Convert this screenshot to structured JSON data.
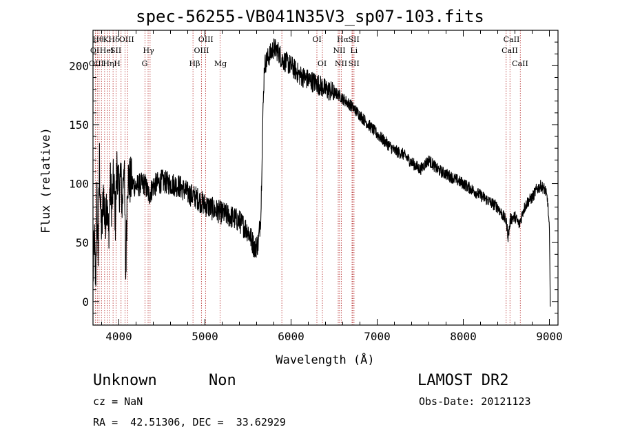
{
  "title": "spec-56255-VB041N35V3_sp07-103.fits",
  "info": {
    "class_label": "Unknown",
    "subclass_label": "Non",
    "survey": "LAMOST DR2",
    "cz": "cz = NaN",
    "obs_date": "Obs-Date: 20121123",
    "ra_dec": "RA =  42.51306, DEC =  33.62929"
  },
  "chart_data": {
    "type": "line",
    "xlabel": "Wavelength (Å)",
    "ylabel": "Flux (relative)",
    "xlim": [
      3700,
      9100
    ],
    "ylim": [
      -20,
      230
    ],
    "xticks": [
      4000,
      5000,
      6000,
      7000,
      8000,
      9000
    ],
    "yticks": [
      0,
      50,
      100,
      150,
      200
    ],
    "series": [
      {
        "points": [
          [
            3700,
            20
          ],
          [
            3715,
            55
          ],
          [
            3730,
            15
          ],
          [
            3745,
            85
          ],
          [
            3760,
            40
          ],
          [
            3775,
            120
          ],
          [
            3790,
            70
          ],
          [
            3805,
            60
          ],
          [
            3820,
            95
          ],
          [
            3840,
            65
          ],
          [
            3860,
            90
          ],
          [
            3880,
            55
          ],
          [
            3900,
            100
          ],
          [
            3920,
            80
          ],
          [
            3940,
            105
          ],
          [
            3960,
            70
          ],
          [
            3980,
            120
          ],
          [
            4000,
            90
          ],
          [
            4020,
            110
          ],
          [
            4040,
            80
          ],
          [
            4060,
            125
          ],
          [
            4080,
            20
          ],
          [
            4100,
            105
          ],
          [
            4150,
            100
          ],
          [
            4200,
            98
          ],
          [
            4300,
            100
          ],
          [
            4350,
            90
          ],
          [
            4400,
            98
          ],
          [
            4500,
            102
          ],
          [
            4600,
            100
          ],
          [
            4700,
            98
          ],
          [
            4800,
            92
          ],
          [
            4900,
            88
          ],
          [
            5000,
            82
          ],
          [
            5100,
            78
          ],
          [
            5200,
            75
          ],
          [
            5300,
            72
          ],
          [
            5400,
            68
          ],
          [
            5500,
            60
          ],
          [
            5580,
            45
          ],
          [
            5620,
            50
          ],
          [
            5650,
            75
          ],
          [
            5670,
            150
          ],
          [
            5690,
            200
          ],
          [
            5720,
            205
          ],
          [
            5800,
            215
          ],
          [
            5850,
            212
          ],
          [
            5900,
            205
          ],
          [
            6000,
            200
          ],
          [
            6100,
            192
          ],
          [
            6200,
            188
          ],
          [
            6300,
            185
          ],
          [
            6400,
            180
          ],
          [
            6500,
            177
          ],
          [
            6560,
            175
          ],
          [
            6600,
            172
          ],
          [
            6700,
            166
          ],
          [
            6800,
            158
          ],
          [
            6900,
            150
          ],
          [
            7000,
            142
          ],
          [
            7100,
            135
          ],
          [
            7200,
            128
          ],
          [
            7300,
            125
          ],
          [
            7400,
            118
          ],
          [
            7500,
            112
          ],
          [
            7600,
            120
          ],
          [
            7700,
            112
          ],
          [
            7800,
            108
          ],
          [
            7900,
            104
          ],
          [
            8000,
            100
          ],
          [
            8100,
            95
          ],
          [
            8200,
            90
          ],
          [
            8300,
            85
          ],
          [
            8400,
            80
          ],
          [
            8500,
            68
          ],
          [
            8520,
            55
          ],
          [
            8550,
            70
          ],
          [
            8600,
            72
          ],
          [
            8650,
            65
          ],
          [
            8700,
            78
          ],
          [
            8750,
            85
          ],
          [
            8800,
            88
          ],
          [
            8850,
            95
          ],
          [
            8900,
            98
          ],
          [
            8950,
            95
          ],
          [
            8980,
            85
          ],
          [
            9000,
            60
          ],
          [
            9010,
            0
          ]
        ]
      }
    ],
    "lines": [
      {
        "wl": 3727,
        "labels": []
      },
      {
        "wl": 3750,
        "labels": []
      },
      {
        "wl": 3771,
        "labels": []
      },
      {
        "wl": 3798,
        "labels": []
      },
      {
        "wl": 3835,
        "labels": []
      },
      {
        "wl": 3869,
        "labels": []
      },
      {
        "wl": 3889,
        "labels": []
      },
      {
        "wl": 3933,
        "labels": []
      },
      {
        "wl": 3968,
        "labels": []
      },
      {
        "wl": 4026,
        "labels": []
      },
      {
        "wl": 4072,
        "labels": []
      },
      {
        "wl": 4102,
        "labels": []
      },
      {
        "wl": 4304,
        "labels": []
      },
      {
        "wl": 4340,
        "labels": []
      },
      {
        "wl": 4363,
        "labels": []
      },
      {
        "wl": 4861,
        "labels": []
      },
      {
        "wl": 4959,
        "labels": []
      },
      {
        "wl": 5007,
        "labels": []
      },
      {
        "wl": 5175,
        "labels": []
      },
      {
        "wl": 5893,
        "labels": []
      },
      {
        "wl": 6300,
        "labels": []
      },
      {
        "wl": 6364,
        "labels": []
      },
      {
        "wl": 6548,
        "labels": []
      },
      {
        "wl": 6563,
        "labels": []
      },
      {
        "wl": 6583,
        "labels": []
      },
      {
        "wl": 6708,
        "labels": []
      },
      {
        "wl": 6716,
        "labels": []
      },
      {
        "wl": 6731,
        "labels": []
      },
      {
        "wl": 8498,
        "labels": []
      },
      {
        "wl": 8542,
        "labels": []
      },
      {
        "wl": 8662,
        "labels": []
      }
    ],
    "line_labels": [
      {
        "wl": 3760,
        "row": 0,
        "text": "Hθ"
      },
      {
        "wl": 3850,
        "row": 0,
        "text": "K"
      },
      {
        "wl": 3945,
        "row": 0,
        "text": "Hδ"
      },
      {
        "wl": 4090,
        "row": 0,
        "text": "OIII"
      },
      {
        "wl": 5010,
        "row": 0,
        "text": "OIII"
      },
      {
        "wl": 6300,
        "row": 0,
        "text": "OI"
      },
      {
        "wl": 6600,
        "row": 0,
        "text": "Hα"
      },
      {
        "wl": 6730,
        "row": 0,
        "text": "SII"
      },
      {
        "wl": 8560,
        "row": 0,
        "text": "CaII"
      },
      {
        "wl": 3720,
        "row": 1,
        "text": "OI"
      },
      {
        "wl": 3860,
        "row": 1,
        "text": "HeI"
      },
      {
        "wl": 3965,
        "row": 1,
        "text": "SII"
      },
      {
        "wl": 4345,
        "row": 1,
        "text": "Hγ"
      },
      {
        "wl": 4960,
        "row": 1,
        "text": "OIII"
      },
      {
        "wl": 6560,
        "row": 1,
        "text": "NII"
      },
      {
        "wl": 6730,
        "row": 1,
        "text": "Li"
      },
      {
        "wl": 8540,
        "row": 1,
        "text": "CaII"
      },
      {
        "wl": 3740,
        "row": 2,
        "text": "OIII"
      },
      {
        "wl": 3880,
        "row": 2,
        "text": "Hη"
      },
      {
        "wl": 3980,
        "row": 2,
        "text": "H"
      },
      {
        "wl": 4300,
        "row": 2,
        "text": "G"
      },
      {
        "wl": 4880,
        "row": 2,
        "text": "Hβ"
      },
      {
        "wl": 5180,
        "row": 2,
        "text": "Mg"
      },
      {
        "wl": 6360,
        "row": 2,
        "text": "OI"
      },
      {
        "wl": 6580,
        "row": 2,
        "text": "NII"
      },
      {
        "wl": 6730,
        "row": 2,
        "text": "SII"
      },
      {
        "wl": 8660,
        "row": 2,
        "text": "CaII"
      }
    ],
    "colors": {
      "spectrum": "#000000",
      "line_markers": "#b22222",
      "axes": "#000000"
    }
  }
}
